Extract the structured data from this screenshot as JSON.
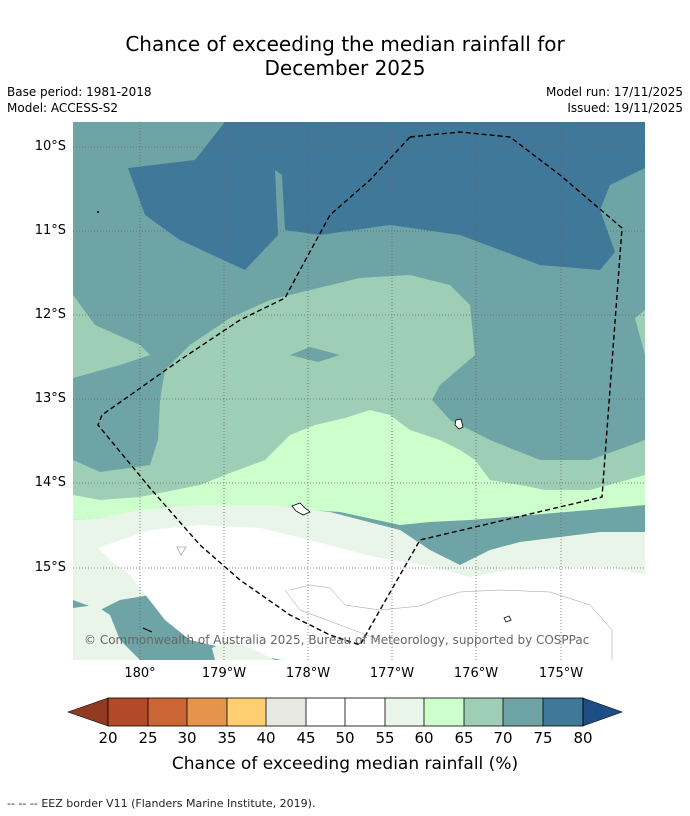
{
  "header": {
    "title_line1": "Chance of exceeding the median rainfall for",
    "title_line2": "December 2025",
    "base_period": "Base period: 1981-2018",
    "model": "Model: ACCESS-S2",
    "model_run": "Model run: 17/11/2025",
    "issued": "Issued: 19/11/2025"
  },
  "map": {
    "lat_labels": [
      "10°S",
      "11°S",
      "12°S",
      "13°S",
      "14°S",
      "15°S"
    ],
    "lon_labels": [
      "180°",
      "179°W",
      "178°W",
      "177°W",
      "176°W",
      "175°W"
    ],
    "copyright": "© Commonwealth of Australia 2025, Bureau of Meteorology, supported by COSPPac",
    "region_legend": "EEZ border V11 (Flanders Marine Institute, 2019)."
  },
  "colorbar": {
    "label": "Chance of exceeding median rainfall (%)",
    "ticks": [
      "20",
      "25",
      "30",
      "35",
      "40",
      "45",
      "50",
      "55",
      "60",
      "65",
      "70",
      "75",
      "80"
    ],
    "colors": {
      "below20": "#8f3a21",
      "c20_25": "#b24a29",
      "c25_30": "#cc6535",
      "c30_35": "#e3954b",
      "c35_40": "#fdcf70",
      "c40_45": "#e8e8e3",
      "c45_50": "#ffffff",
      "c50_55": "#ffffff",
      "c55_60": "#eaf5e9",
      "c60_65": "#ccffcc",
      "c65_70": "#9ecfb6",
      "c70_75": "#6fa4a6",
      "c75_80": "#407899",
      "above80": "#1f4e87"
    }
  },
  "footer": {
    "dash_symbol": "-- -- --"
  }
}
